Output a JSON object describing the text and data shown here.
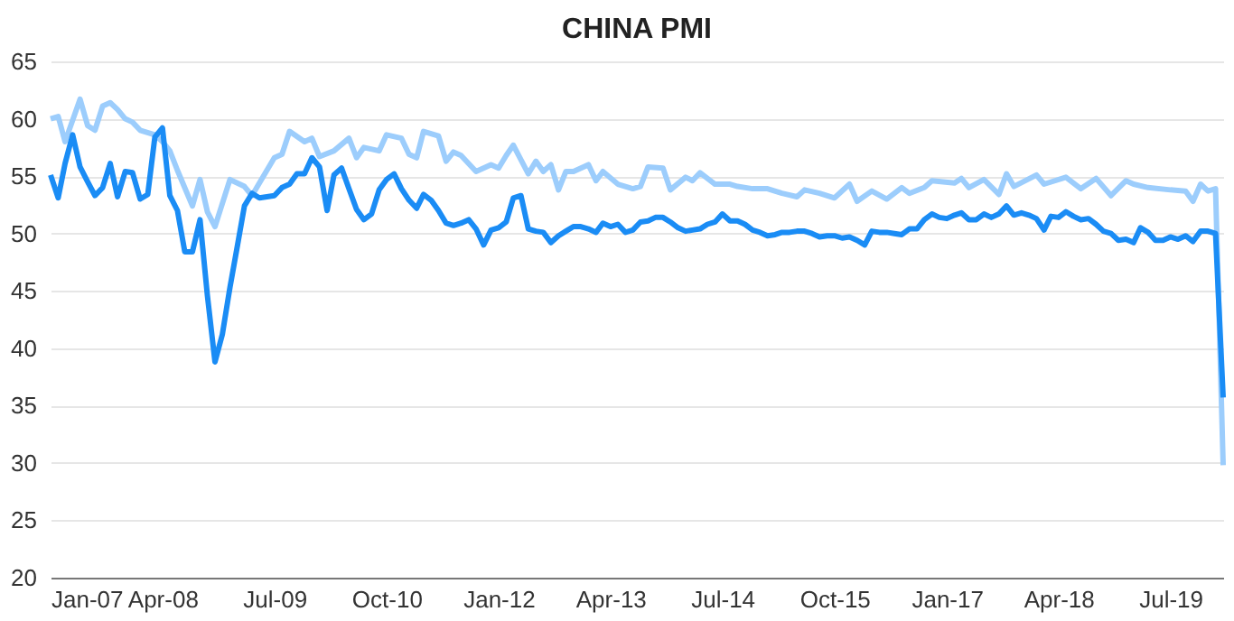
{
  "chart_data": {
    "type": "line",
    "title": "CHINA PMI",
    "grid": "y",
    "xlim": [
      "2007-01",
      "2020-02"
    ],
    "ylim": [
      20,
      65
    ],
    "yticks": [
      20,
      25,
      30,
      35,
      40,
      45,
      50,
      55,
      60,
      65
    ],
    "xticks": [
      {
        "value": "2007-01",
        "label": "Jan-07"
      },
      {
        "value": "2008-04",
        "label": "Apr-08"
      },
      {
        "value": "2009-07",
        "label": "Jul-09"
      },
      {
        "value": "2010-10",
        "label": "Oct-10"
      },
      {
        "value": "2012-01",
        "label": "Jan-12"
      },
      {
        "value": "2013-04",
        "label": "Apr-13"
      },
      {
        "value": "2014-07",
        "label": "Jul-14"
      },
      {
        "value": "2015-10",
        "label": "Oct-15"
      },
      {
        "value": "2017-01",
        "label": "Jan-17"
      },
      {
        "value": "2018-04",
        "label": "Apr-18"
      },
      {
        "value": "2019-07",
        "label": "Jul-19"
      }
    ],
    "series": [
      {
        "color": "#9ccdfc",
        "x": [
          "2007-01",
          "2007-02",
          "2007-03",
          "2007-05",
          "2007-06",
          "2007-07",
          "2007-08",
          "2007-09",
          "2007-10",
          "2007-11",
          "2007-12",
          "2008-01",
          "2008-03",
          "2008-04",
          "2008-05",
          "2008-06",
          "2008-08",
          "2008-09",
          "2008-10",
          "2008-11",
          "2009-01",
          "2009-03",
          "2009-04",
          "2009-05",
          "2009-07",
          "2009-08",
          "2009-09",
          "2009-11",
          "2009-12",
          "2010-01",
          "2010-03",
          "2010-05",
          "2010-06",
          "2010-07",
          "2010-09",
          "2010-10",
          "2010-12",
          "2011-01",
          "2011-02",
          "2011-03",
          "2011-05",
          "2011-06",
          "2011-07",
          "2011-08",
          "2011-10",
          "2011-12",
          "2012-01",
          "2012-02",
          "2012-03",
          "2012-05",
          "2012-06",
          "2012-07",
          "2012-08",
          "2012-09",
          "2012-10",
          "2012-11",
          "2013-01",
          "2013-02",
          "2013-03",
          "2013-05",
          "2013-07",
          "2013-08",
          "2013-09",
          "2013-11",
          "2013-12",
          "2014-02",
          "2014-03",
          "2014-04",
          "2014-06",
          "2014-08",
          "2014-09",
          "2014-11",
          "2015-01",
          "2015-03",
          "2015-05",
          "2015-06",
          "2015-08",
          "2015-10",
          "2015-12",
          "2016-01",
          "2016-03",
          "2016-05",
          "2016-07",
          "2016-08",
          "2016-10",
          "2016-11",
          "2017-02",
          "2017-03",
          "2017-04",
          "2017-06",
          "2017-08",
          "2017-09",
          "2017-10",
          "2018-01",
          "2018-02",
          "2018-05",
          "2018-07",
          "2018-09",
          "2018-11",
          "2019-01",
          "2019-02",
          "2019-04",
          "2019-07",
          "2019-09",
          "2019-10",
          "2019-11",
          "2019-12",
          "2020-01",
          "2020-02"
        ],
        "values": [
          60.0,
          60.2,
          58.0,
          61.7,
          59.4,
          59.0,
          61.1,
          61.4,
          60.8,
          60.0,
          59.7,
          59.0,
          58.6,
          58.0,
          57.2,
          55.5,
          52.4,
          54.7,
          51.9,
          50.6,
          54.7,
          54.1,
          53.3,
          54.4,
          56.6,
          56.9,
          58.9,
          58.0,
          58.3,
          56.7,
          57.2,
          58.3,
          56.6,
          57.5,
          57.2,
          58.6,
          58.3,
          56.9,
          56.6,
          58.9,
          58.5,
          56.3,
          57.1,
          56.8,
          55.4,
          56.0,
          55.7,
          56.8,
          57.7,
          55.2,
          56.3,
          55.4,
          56.0,
          53.8,
          55.4,
          55.4,
          56.0,
          54.6,
          55.4,
          54.3,
          53.9,
          54.1,
          55.8,
          55.7,
          53.8,
          54.9,
          54.6,
          55.3,
          54.3,
          54.3,
          54.1,
          53.9,
          53.9,
          53.5,
          53.2,
          53.8,
          53.5,
          53.1,
          54.3,
          52.8,
          53.7,
          53.0,
          54.0,
          53.5,
          54.0,
          54.6,
          54.4,
          54.8,
          54.0,
          54.7,
          53.4,
          55.2,
          54.1,
          55.1,
          54.3,
          54.9,
          53.9,
          54.8,
          53.3,
          54.6,
          54.3,
          54.0,
          53.8,
          53.7,
          52.8,
          54.3,
          53.7,
          53.9,
          29.8
        ]
      },
      {
        "color": "#1a8cf5",
        "x": [
          "2007-01",
          "2007-02",
          "2007-03",
          "2007-04",
          "2007-05",
          "2007-06",
          "2007-07",
          "2007-08",
          "2007-09",
          "2007-10",
          "2007-11",
          "2007-12",
          "2008-01",
          "2008-02",
          "2008-03",
          "2008-04",
          "2008-05",
          "2008-06",
          "2008-07",
          "2008-08",
          "2008-09",
          "2008-10",
          "2008-11",
          "2008-12",
          "2009-01",
          "2009-02",
          "2009-03",
          "2009-04",
          "2009-05",
          "2009-06",
          "2009-07",
          "2009-08",
          "2009-09",
          "2009-10",
          "2009-11",
          "2009-12",
          "2010-01",
          "2010-02",
          "2010-03",
          "2010-04",
          "2010-05",
          "2010-06",
          "2010-07",
          "2010-08",
          "2010-09",
          "2010-10",
          "2010-11",
          "2010-12",
          "2011-01",
          "2011-02",
          "2011-03",
          "2011-04",
          "2011-05",
          "2011-06",
          "2011-07",
          "2011-08",
          "2011-09",
          "2011-10",
          "2011-11",
          "2011-12",
          "2012-01",
          "2012-02",
          "2012-03",
          "2012-04",
          "2012-05",
          "2012-06",
          "2012-07",
          "2012-08",
          "2012-09",
          "2012-10",
          "2012-11",
          "2012-12",
          "2013-01",
          "2013-02",
          "2013-03",
          "2013-04",
          "2013-05",
          "2013-06",
          "2013-07",
          "2013-08",
          "2013-09",
          "2013-10",
          "2013-11",
          "2013-12",
          "2014-01",
          "2014-02",
          "2014-03",
          "2014-04",
          "2014-05",
          "2014-06",
          "2014-07",
          "2014-08",
          "2014-09",
          "2014-10",
          "2014-11",
          "2014-12",
          "2015-01",
          "2015-02",
          "2015-03",
          "2015-04",
          "2015-05",
          "2015-06",
          "2015-07",
          "2015-08",
          "2015-09",
          "2015-10",
          "2015-11",
          "2015-12",
          "2016-01",
          "2016-02",
          "2016-03",
          "2016-04",
          "2016-05",
          "2016-06",
          "2016-07",
          "2016-08",
          "2016-09",
          "2016-10",
          "2016-11",
          "2016-12",
          "2017-01",
          "2017-02",
          "2017-03",
          "2017-04",
          "2017-05",
          "2017-06",
          "2017-07",
          "2017-08",
          "2017-09",
          "2017-10",
          "2017-11",
          "2017-12",
          "2018-01",
          "2018-02",
          "2018-03",
          "2018-04",
          "2018-05",
          "2018-06",
          "2018-07",
          "2018-08",
          "2018-09",
          "2018-10",
          "2018-11",
          "2018-12",
          "2019-01",
          "2019-02",
          "2019-03",
          "2019-04",
          "2019-05",
          "2019-06",
          "2019-07",
          "2019-08",
          "2019-09",
          "2019-10",
          "2019-11",
          "2019-12",
          "2020-01",
          "2020-02"
        ],
        "values": [
          55.1,
          53.1,
          56.1,
          58.6,
          55.8,
          54.5,
          53.3,
          54.0,
          56.1,
          53.2,
          55.4,
          55.3,
          53.0,
          53.4,
          58.4,
          59.2,
          53.3,
          52.0,
          48.4,
          48.4,
          51.2,
          44.6,
          38.8,
          41.2,
          45.3,
          49.0,
          52.4,
          53.5,
          53.1,
          53.2,
          53.3,
          54.0,
          54.3,
          55.2,
          55.2,
          56.6,
          55.8,
          52.0,
          55.1,
          55.7,
          53.9,
          52.1,
          51.2,
          51.7,
          53.8,
          54.7,
          55.2,
          53.9,
          52.9,
          52.2,
          53.4,
          52.9,
          52.0,
          50.9,
          50.7,
          50.9,
          51.2,
          50.4,
          49.0,
          50.3,
          50.5,
          51.0,
          53.1,
          53.3,
          50.4,
          50.2,
          50.1,
          49.2,
          49.8,
          50.2,
          50.6,
          50.6,
          50.4,
          50.1,
          50.9,
          50.6,
          50.8,
          50.1,
          50.3,
          51.0,
          51.1,
          51.4,
          51.4,
          51.0,
          50.5,
          50.2,
          50.3,
          50.4,
          50.8,
          51.0,
          51.7,
          51.1,
          51.1,
          50.8,
          50.3,
          50.1,
          49.8,
          49.9,
          50.1,
          50.1,
          50.2,
          50.2,
          50.0,
          49.7,
          49.8,
          49.8,
          49.6,
          49.7,
          49.4,
          49.0,
          50.2,
          50.1,
          50.1,
          50.0,
          49.9,
          50.4,
          50.4,
          51.2,
          51.7,
          51.4,
          51.3,
          51.6,
          51.8,
          51.2,
          51.2,
          51.7,
          51.4,
          51.7,
          52.4,
          51.6,
          51.8,
          51.6,
          51.3,
          50.3,
          51.5,
          51.4,
          51.9,
          51.5,
          51.2,
          51.3,
          50.8,
          50.2,
          50.0,
          49.4,
          49.5,
          49.2,
          50.5,
          50.1,
          49.4,
          49.4,
          49.7,
          49.5,
          49.8,
          49.3,
          50.2,
          50.2,
          50.0,
          35.7
        ]
      }
    ]
  }
}
